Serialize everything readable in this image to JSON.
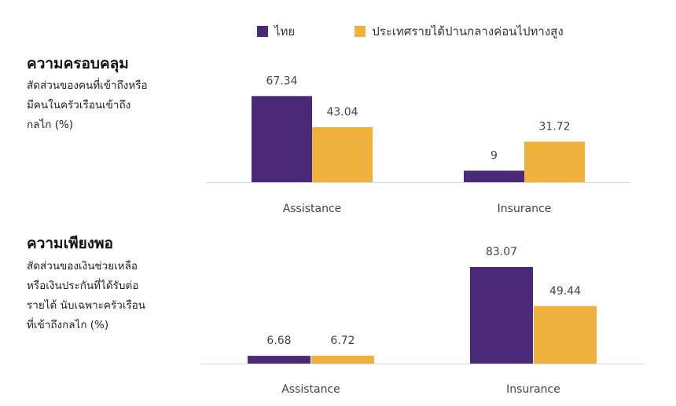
{
  "legend": [
    {
      "label": "ไทย",
      "color": "#4a2a78"
    },
    {
      "label": "ประเทศรายได้ปานกลางค่อนไปทางสูง",
      "color": "#f0b23c"
    }
  ],
  "panels": [
    {
      "title": "ความครอบคลุม",
      "description": [
        "สัดส่วนของคนที่เข้าถึงหรือ",
        "มีคนในครัวเรือนเข้าถึง",
        "กลไก (%)"
      ]
    },
    {
      "title": "ความเพียงพอ",
      "description": [
        "สัดส่วนของเงินช่วยเหลือ",
        "หรือเงินประกันที่ได้รับต่อ",
        "รายได้ นับเฉพาะครัวเรือน",
        "ที่เข้าถึงกลไก (%)"
      ]
    }
  ],
  "chart_data": [
    {
      "type": "bar",
      "categories": [
        "Assistance",
        "Insurance"
      ],
      "series": [
        {
          "name": "ไทย",
          "values": [
            67.34,
            9
          ],
          "labels": [
            "67.34",
            "9"
          ]
        },
        {
          "name": "ประเทศรายได้ปานกลางค่อนไปทางสูง",
          "values": [
            43.04,
            31.72
          ],
          "labels": [
            "43.04",
            "31.72"
          ]
        }
      ],
      "ylim": [
        0,
        70
      ],
      "grid": false,
      "legend": "top"
    },
    {
      "type": "bar",
      "categories": [
        "Assistance",
        "Insurance"
      ],
      "series": [
        {
          "name": "ไทย",
          "values": [
            6.68,
            83.07
          ],
          "labels": [
            "6.68",
            "83.07"
          ]
        },
        {
          "name": "ประเทศรายได้ปานกลางค่อนไปทางสูง",
          "values": [
            6.72,
            49.44
          ],
          "labels": [
            "6.72",
            "49.44"
          ]
        }
      ],
      "ylim": [
        0,
        83.07
      ],
      "grid": false,
      "legend": "top"
    }
  ]
}
